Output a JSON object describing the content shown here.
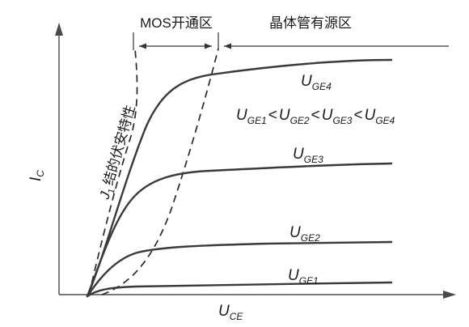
{
  "regions": {
    "mos": "MOS开通区",
    "active": "晶体管有源区"
  },
  "axes": {
    "y_label": "I",
    "y_sub": "C",
    "x_label": "U",
    "x_sub": "CE"
  },
  "j1_label": {
    "main": "J",
    "sub": "1",
    "text": "结的伏安特性"
  },
  "curves": [
    {
      "main": "U",
      "sub": "GE4"
    },
    {
      "main": "U",
      "sub": "GE3"
    },
    {
      "main": "U",
      "sub": "GE2"
    },
    {
      "main": "U",
      "sub": "GE1"
    }
  ],
  "relation": {
    "u": "U",
    "lt": "<",
    "subs": [
      "GE1",
      "GE2",
      "GE3",
      "GE4"
    ]
  }
}
